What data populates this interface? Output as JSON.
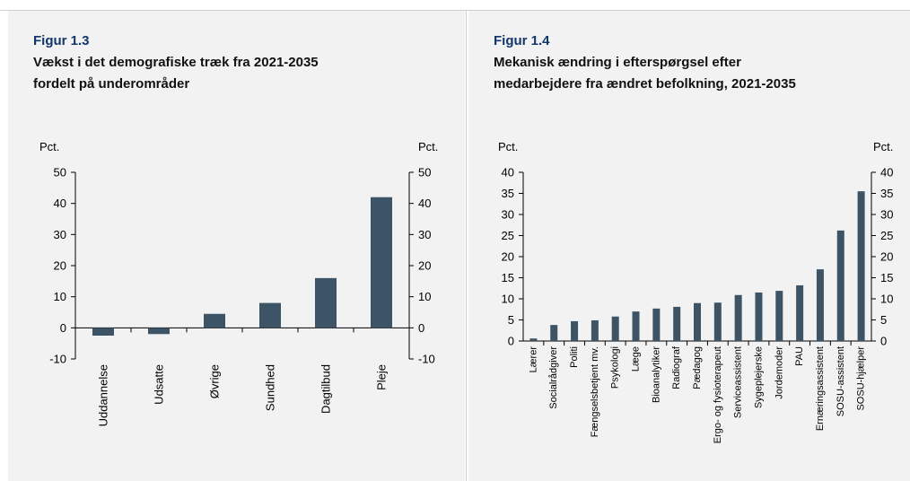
{
  "figures": [
    {
      "label": "Figur 1.3",
      "title_lines": [
        "Vækst i det demografiske træk fra 2021-2035",
        "fordelt på underområder"
      ]
    },
    {
      "label": "Figur 1.4",
      "title_lines": [
        "Mekanisk ændring i efterspørgsel efter",
        "medarbejdere fra ændret befolkning, 2021-2035"
      ]
    }
  ],
  "chart_data": [
    {
      "type": "bar",
      "categories": [
        "Uddannelse",
        "Udsatte",
        "Øvrige",
        "Sundhed",
        "Dagtilbud",
        "Pleje"
      ],
      "values": [
        -2.5,
        -2.0,
        4.5,
        8.0,
        16.0,
        42.0
      ],
      "ylabel_left": "Pct.",
      "ylabel_right": "Pct.",
      "ylim": [
        -10,
        50
      ],
      "yticks": [
        -10,
        0,
        10,
        20,
        30,
        40,
        50
      ],
      "grid": false,
      "bar_color": "#3d5466"
    },
    {
      "type": "bar",
      "categories": [
        "Lærer",
        "Socialrådgiver",
        "Politi",
        "Fængselsbetjent mv.",
        "Psykologi",
        "Læge",
        "Bioanalytiker",
        "Radiograf",
        "Pædagog",
        "Ergo- og fysioterapeut",
        "Serviceassistent",
        "Sygeplejerske",
        "Jordemoder",
        "PAU",
        "Ernæringsassistent",
        "SOSU-assistent",
        "SOSU-hjælper"
      ],
      "values": [
        0.6,
        3.8,
        4.7,
        4.9,
        5.8,
        7.0,
        7.7,
        8.1,
        9.0,
        9.1,
        10.9,
        11.5,
        11.9,
        13.2,
        17.0,
        26.2,
        35.5
      ],
      "ylabel_left": "Pct.",
      "ylabel_right": "Pct.",
      "ylim": [
        0,
        40
      ],
      "yticks": [
        0,
        5,
        10,
        15,
        20,
        25,
        30,
        35,
        40
      ],
      "grid": false,
      "bar_color": "#3d5466"
    }
  ]
}
